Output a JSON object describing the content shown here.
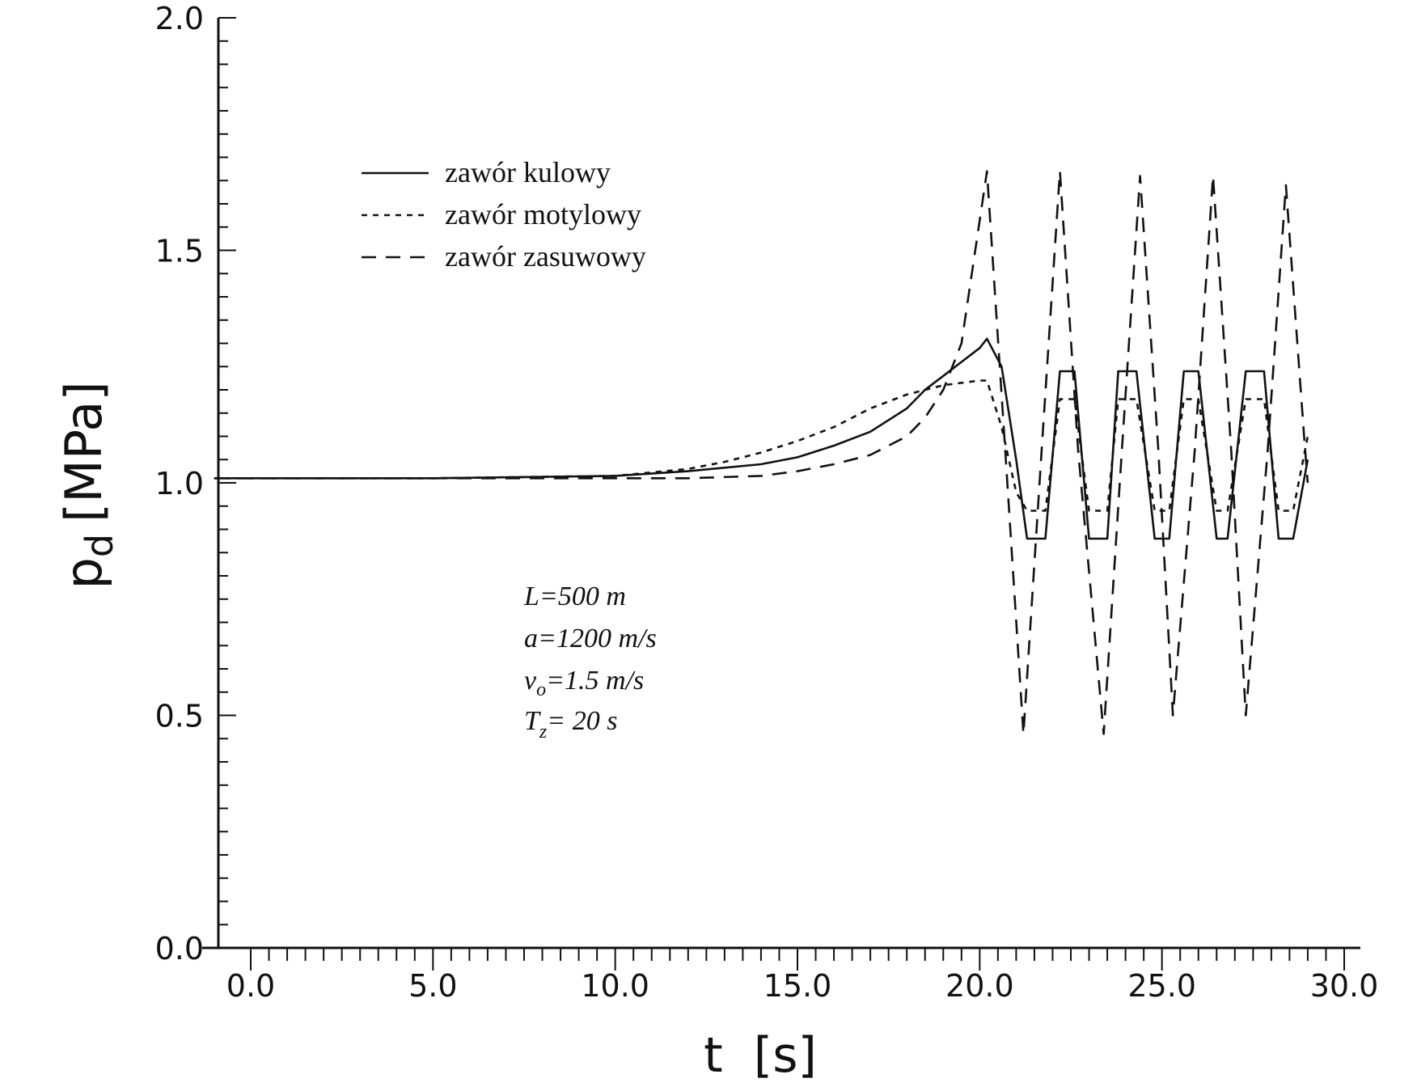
{
  "chart_data": {
    "type": "line",
    "xlabel": "t  [s]",
    "ylabel": "p_d [MPa]",
    "xlim": [
      -1.0,
      30.0
    ],
    "ylim": [
      0.0,
      2.0
    ],
    "x_ticks": [
      "0.0",
      "5.0",
      "10.0",
      "15.0",
      "20.0",
      "25.0",
      "30.0"
    ],
    "y_ticks": [
      "0.0",
      "0.5",
      "1.0",
      "1.5",
      "2.0"
    ],
    "grid": false,
    "legend_position": "top-left",
    "series": [
      {
        "name": "zawór kulowy",
        "line_style": "solid",
        "x": [
          -1.0,
          0.0,
          5.0,
          10.0,
          12.0,
          14.0,
          15.0,
          16.0,
          17.0,
          18.0,
          18.5,
          19.0,
          19.5,
          20.0,
          20.2,
          20.6,
          21.0,
          21.3,
          21.8,
          22.2,
          22.6,
          23.0,
          23.5,
          23.8,
          24.3,
          24.8,
          25.2,
          25.6,
          26.0,
          26.5,
          26.8,
          27.3,
          27.8,
          28.2,
          28.6,
          29.0
        ],
        "y": [
          1.01,
          1.01,
          1.01,
          1.015,
          1.025,
          1.04,
          1.055,
          1.08,
          1.11,
          1.16,
          1.2,
          1.23,
          1.26,
          1.29,
          1.31,
          1.25,
          1.05,
          0.88,
          0.88,
          1.24,
          1.24,
          0.88,
          0.88,
          1.24,
          1.24,
          0.88,
          0.88,
          1.24,
          1.24,
          0.88,
          0.88,
          1.24,
          1.24,
          0.88,
          0.88,
          1.05
        ]
      },
      {
        "name": "zawór motylowy",
        "line_style": "dotted",
        "x": [
          -1.0,
          0.0,
          5.0,
          10.0,
          12.0,
          13.0,
          14.0,
          15.0,
          16.0,
          17.0,
          18.0,
          19.0,
          20.0,
          20.2,
          20.6,
          21.0,
          21.3,
          21.8,
          22.2,
          22.6,
          23.0,
          23.5,
          23.8,
          24.3,
          24.8,
          25.2,
          25.6,
          26.0,
          26.5,
          26.8,
          27.3,
          27.8,
          28.2,
          28.6,
          29.0
        ],
        "y": [
          1.01,
          1.01,
          1.01,
          1.015,
          1.03,
          1.045,
          1.065,
          1.09,
          1.12,
          1.16,
          1.19,
          1.21,
          1.22,
          1.22,
          1.12,
          0.98,
          0.94,
          0.94,
          1.18,
          1.18,
          0.94,
          0.94,
          1.18,
          1.18,
          0.94,
          0.94,
          1.18,
          1.18,
          0.94,
          0.94,
          1.18,
          1.18,
          0.94,
          0.94,
          1.1
        ]
      },
      {
        "name": "zawór zasuwowy",
        "line_style": "dashed",
        "x": [
          -1.0,
          0.0,
          5.0,
          10.0,
          12.0,
          14.0,
          15.0,
          16.0,
          17.0,
          18.0,
          18.5,
          19.0,
          19.5,
          20.2,
          20.7,
          21.2,
          21.7,
          22.2,
          22.7,
          23.4,
          23.9,
          24.4,
          24.9,
          25.3,
          25.9,
          26.4,
          26.9,
          27.3,
          27.9,
          28.4,
          28.9,
          29.0
        ],
        "y": [
          1.01,
          1.01,
          1.01,
          1.01,
          1.01,
          1.015,
          1.025,
          1.04,
          1.06,
          1.1,
          1.14,
          1.2,
          1.3,
          1.67,
          1.07,
          0.46,
          1.07,
          1.67,
          1.07,
          0.46,
          1.07,
          1.66,
          1.07,
          0.5,
          1.07,
          1.66,
          1.07,
          0.5,
          1.07,
          1.64,
          1.1,
          1.0
        ]
      }
    ],
    "annotations": [
      "L=500 m",
      "a=1200 m/s",
      "v_o=1.5 m/s",
      "T_z= 20 s"
    ]
  },
  "labels": {
    "y_main": "p",
    "y_sub": "d",
    "y_unit": "[MPa]",
    "x_title": "t  [s]",
    "param_L": "L=500 m",
    "param_a": "a=1200 m/s",
    "param_v_main": "v",
    "param_v_sub": "o",
    "param_v_rest": "=1.5 m/s",
    "param_T_main": "T",
    "param_T_sub": "z",
    "param_T_rest": "= 20 s"
  }
}
